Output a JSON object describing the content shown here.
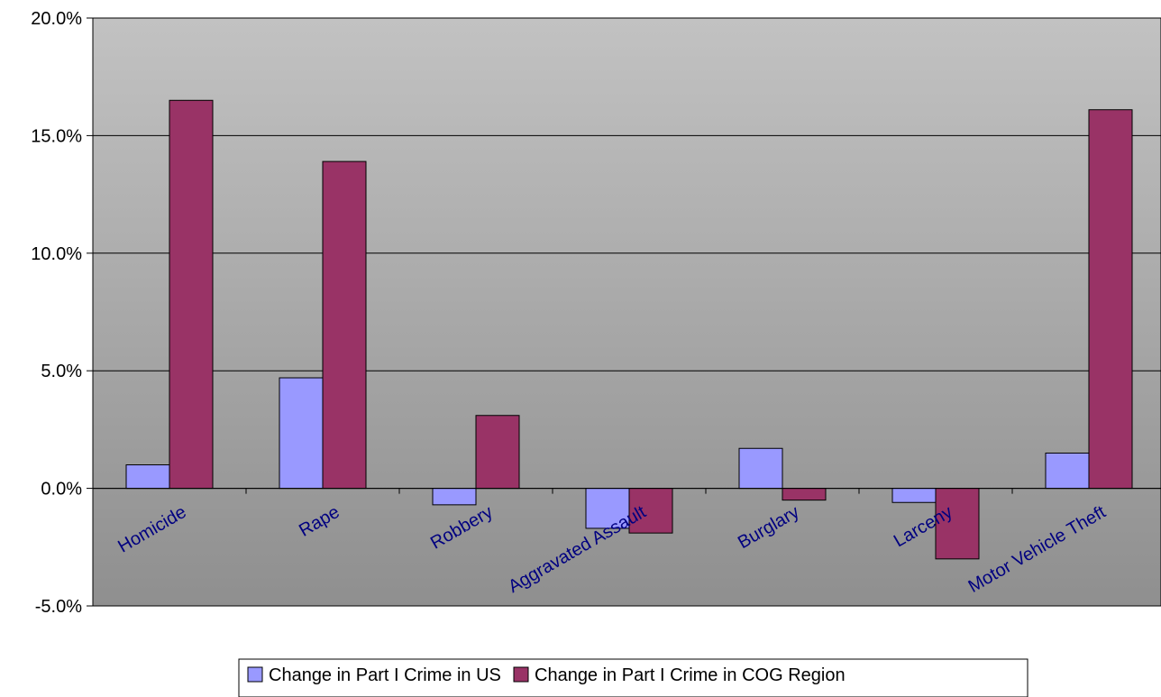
{
  "chart_data": {
    "type": "bar",
    "categories": [
      "Homicide",
      "Rape",
      "Robbery",
      "Aggravated Assault",
      "Burglary",
      "Larceny",
      "Motor Vehicle Theft"
    ],
    "series": [
      {
        "name": "Change in Part I Crime in US",
        "values": [
          1.0,
          4.7,
          -0.7,
          -1.7,
          1.7,
          -0.6,
          1.5
        ],
        "color": "#9999FF"
      },
      {
        "name": "Change in Part I Crime in COG Region",
        "values": [
          16.5,
          13.9,
          3.1,
          -1.9,
          -0.5,
          -3.0,
          16.1
        ],
        "color": "#993366"
      }
    ],
    "yticks": [
      "20.0%",
      "15.0%",
      "10.0%",
      "5.0%",
      "0.0%",
      "-5.0%"
    ],
    "ytick_values": [
      20,
      15,
      10,
      5,
      0,
      -5
    ],
    "ylim": [
      -5,
      20
    ],
    "grid": true,
    "legend_position": "bottom"
  }
}
